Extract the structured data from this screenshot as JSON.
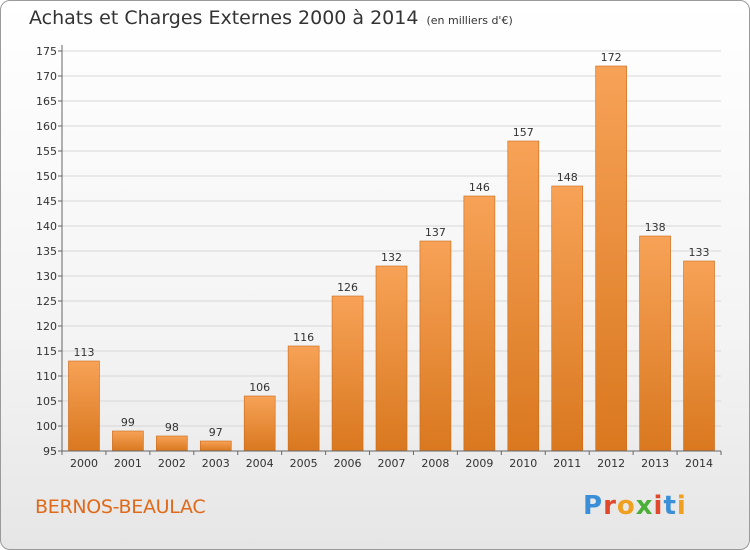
{
  "title": "Achats et Charges Externes 2000 à 2014",
  "subtitle": "(en milliers d'€)",
  "location": "BERNOS-BEAULAC",
  "logo": {
    "text": "Proxiti",
    "letter_colors": [
      "#3b8fd8",
      "#e0482c",
      "#f0a020",
      "#4caf3a",
      "#e0482c",
      "#3b8fd8",
      "#f0a020"
    ]
  },
  "colors": {
    "bar_top": "#f7a257",
    "bar_bottom": "#d9781f",
    "bar_edge": "#c8691a",
    "grid": "#d7d7d7",
    "axis": "#666666"
  },
  "chart_data": {
    "type": "bar",
    "categories": [
      "2000",
      "2001",
      "2002",
      "2003",
      "2004",
      "2005",
      "2006",
      "2007",
      "2008",
      "2009",
      "2010",
      "2011",
      "2012",
      "2013",
      "2014"
    ],
    "values": [
      113,
      99,
      98,
      97,
      106,
      116,
      126,
      132,
      137,
      146,
      157,
      148,
      172,
      138,
      133
    ],
    "data_labels": [
      "113",
      "99",
      "98",
      "97",
      "106",
      "116",
      "126",
      "132",
      "137",
      "146",
      "157",
      "148",
      "172",
      "138",
      "133"
    ],
    "title": "Achats et Charges Externes 2000 à 2014",
    "ylim": [
      95,
      175
    ],
    "yticks": [
      95,
      100,
      105,
      110,
      115,
      120,
      125,
      130,
      135,
      140,
      145,
      150,
      155,
      160,
      165,
      170,
      175
    ],
    "grid": true,
    "legend": "none"
  }
}
